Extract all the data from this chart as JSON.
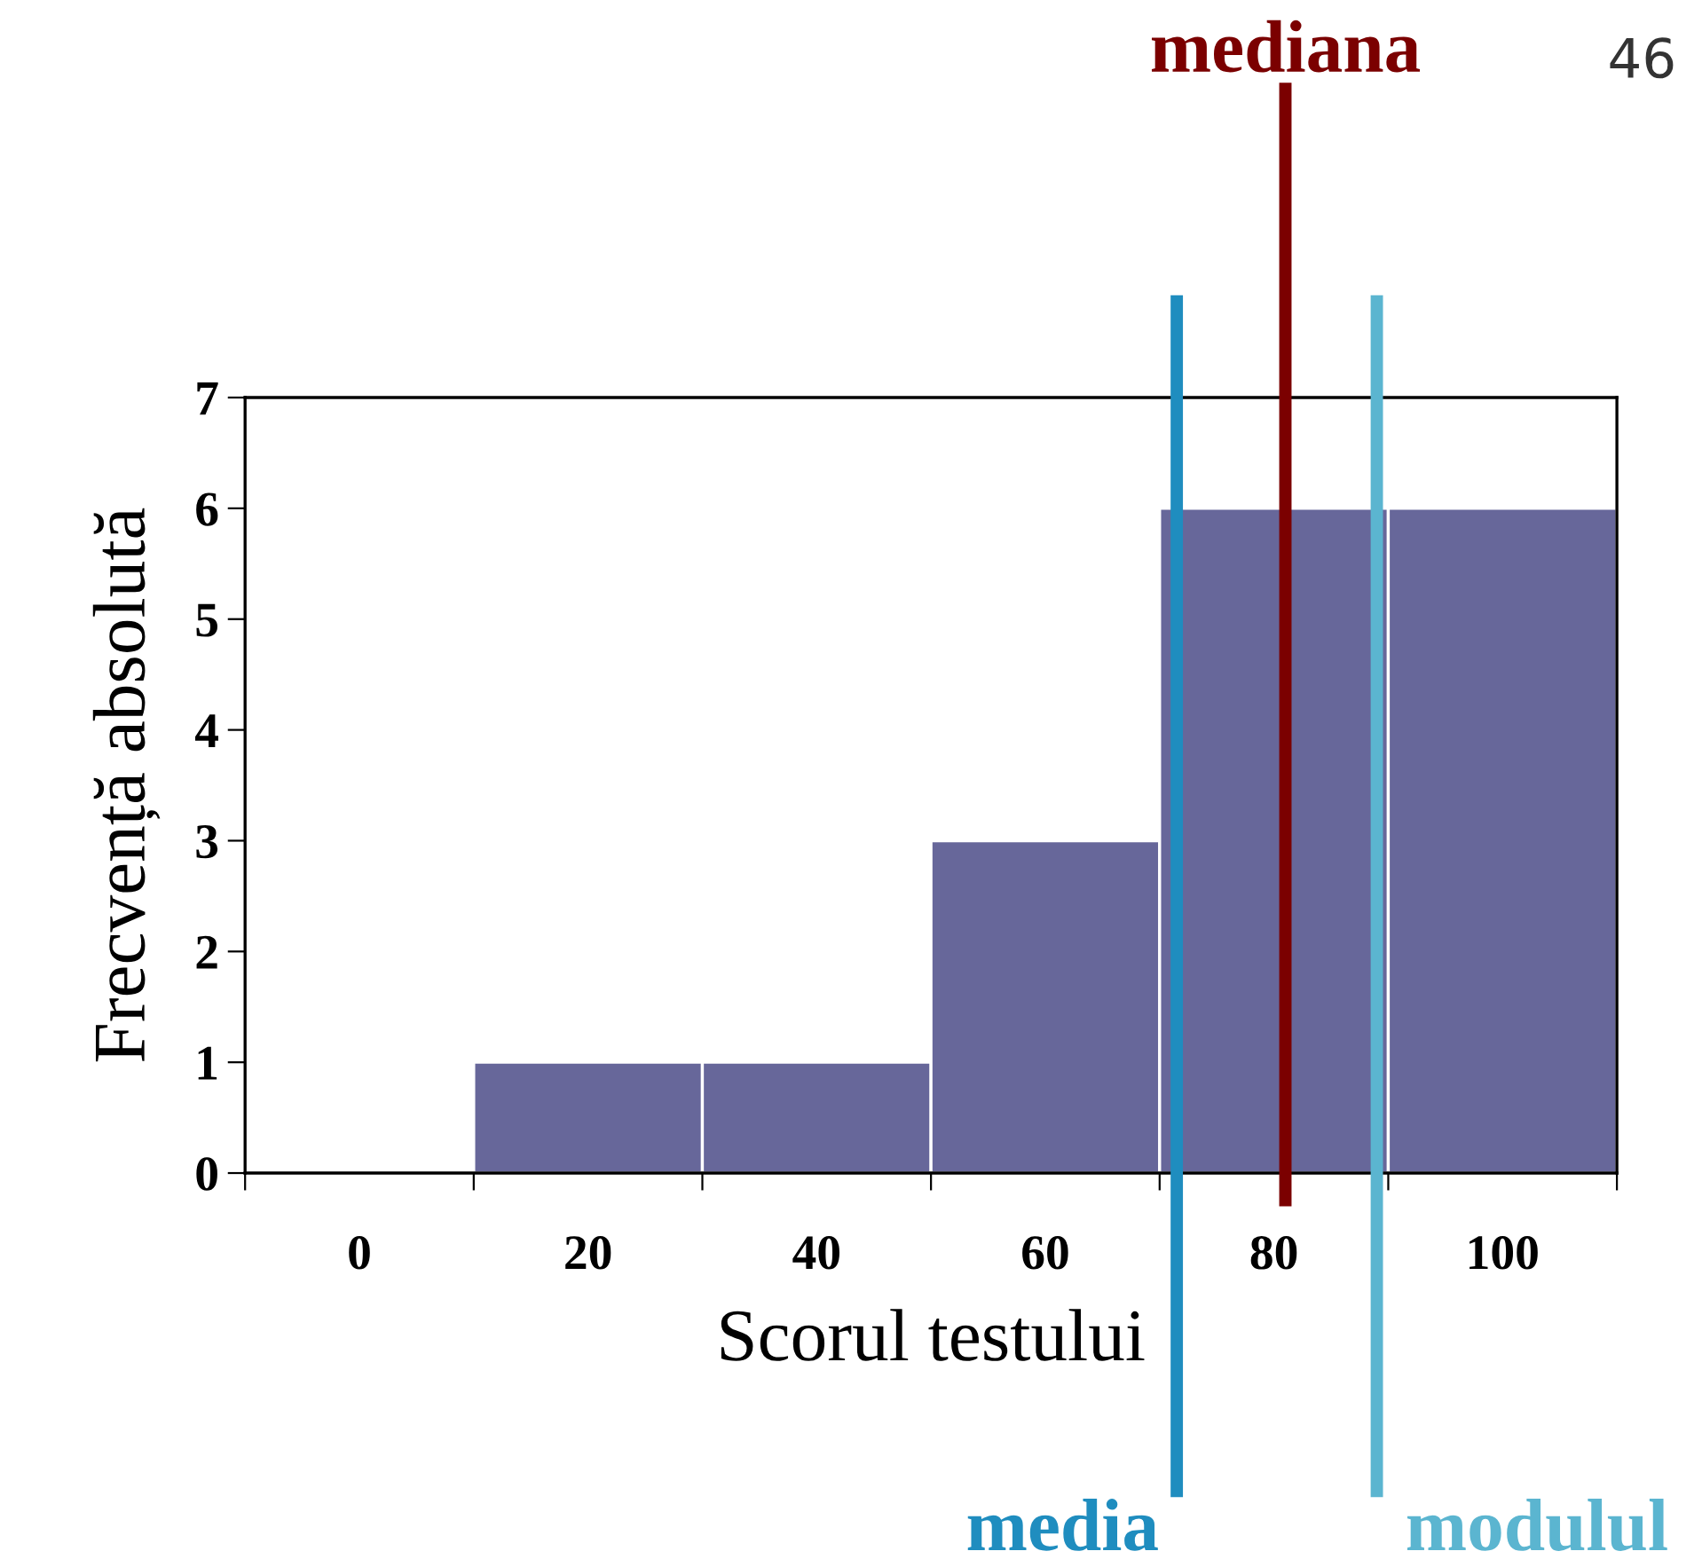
{
  "chart_data": {
    "type": "histogram",
    "xlabel": "Scorul testului",
    "ylabel": "Frecvență absolută",
    "bins": [
      -10,
      10,
      30,
      50,
      70,
      90,
      110
    ],
    "values": [
      0,
      1,
      1,
      3,
      6,
      6
    ],
    "color": "#67679a",
    "xlim": [
      -10,
      110
    ],
    "xticks": [
      {
        "value": -10,
        "label": null
      },
      {
        "value": 0,
        "label": "0"
      },
      {
        "value": 10,
        "label": null
      },
      {
        "value": 20,
        "label": "20"
      },
      {
        "value": 30,
        "label": null
      },
      {
        "value": 40,
        "label": "40"
      },
      {
        "value": 50,
        "label": null
      },
      {
        "value": 60,
        "label": "60"
      },
      {
        "value": 70,
        "label": null
      },
      {
        "value": 80,
        "label": "80"
      },
      {
        "value": 90,
        "label": null
      },
      {
        "value": 100,
        "label": "100"
      },
      {
        "value": 110,
        "label": null
      }
    ],
    "ylim": [
      0,
      7
    ],
    "yticks": [
      0,
      1,
      2,
      3,
      4,
      5,
      6,
      7
    ],
    "ref_lines": [
      {
        "axis": "x",
        "value": 71.5,
        "label": "media",
        "color": "#1f8dbf"
      },
      {
        "axis": "x",
        "value": 81,
        "label": "mediana",
        "color": "#7b0000"
      },
      {
        "axis": "x",
        "value": 89,
        "label": "modulul",
        "color": "#5bb5d0"
      }
    ],
    "annotations": [
      "46"
    ],
    "grid": false
  }
}
